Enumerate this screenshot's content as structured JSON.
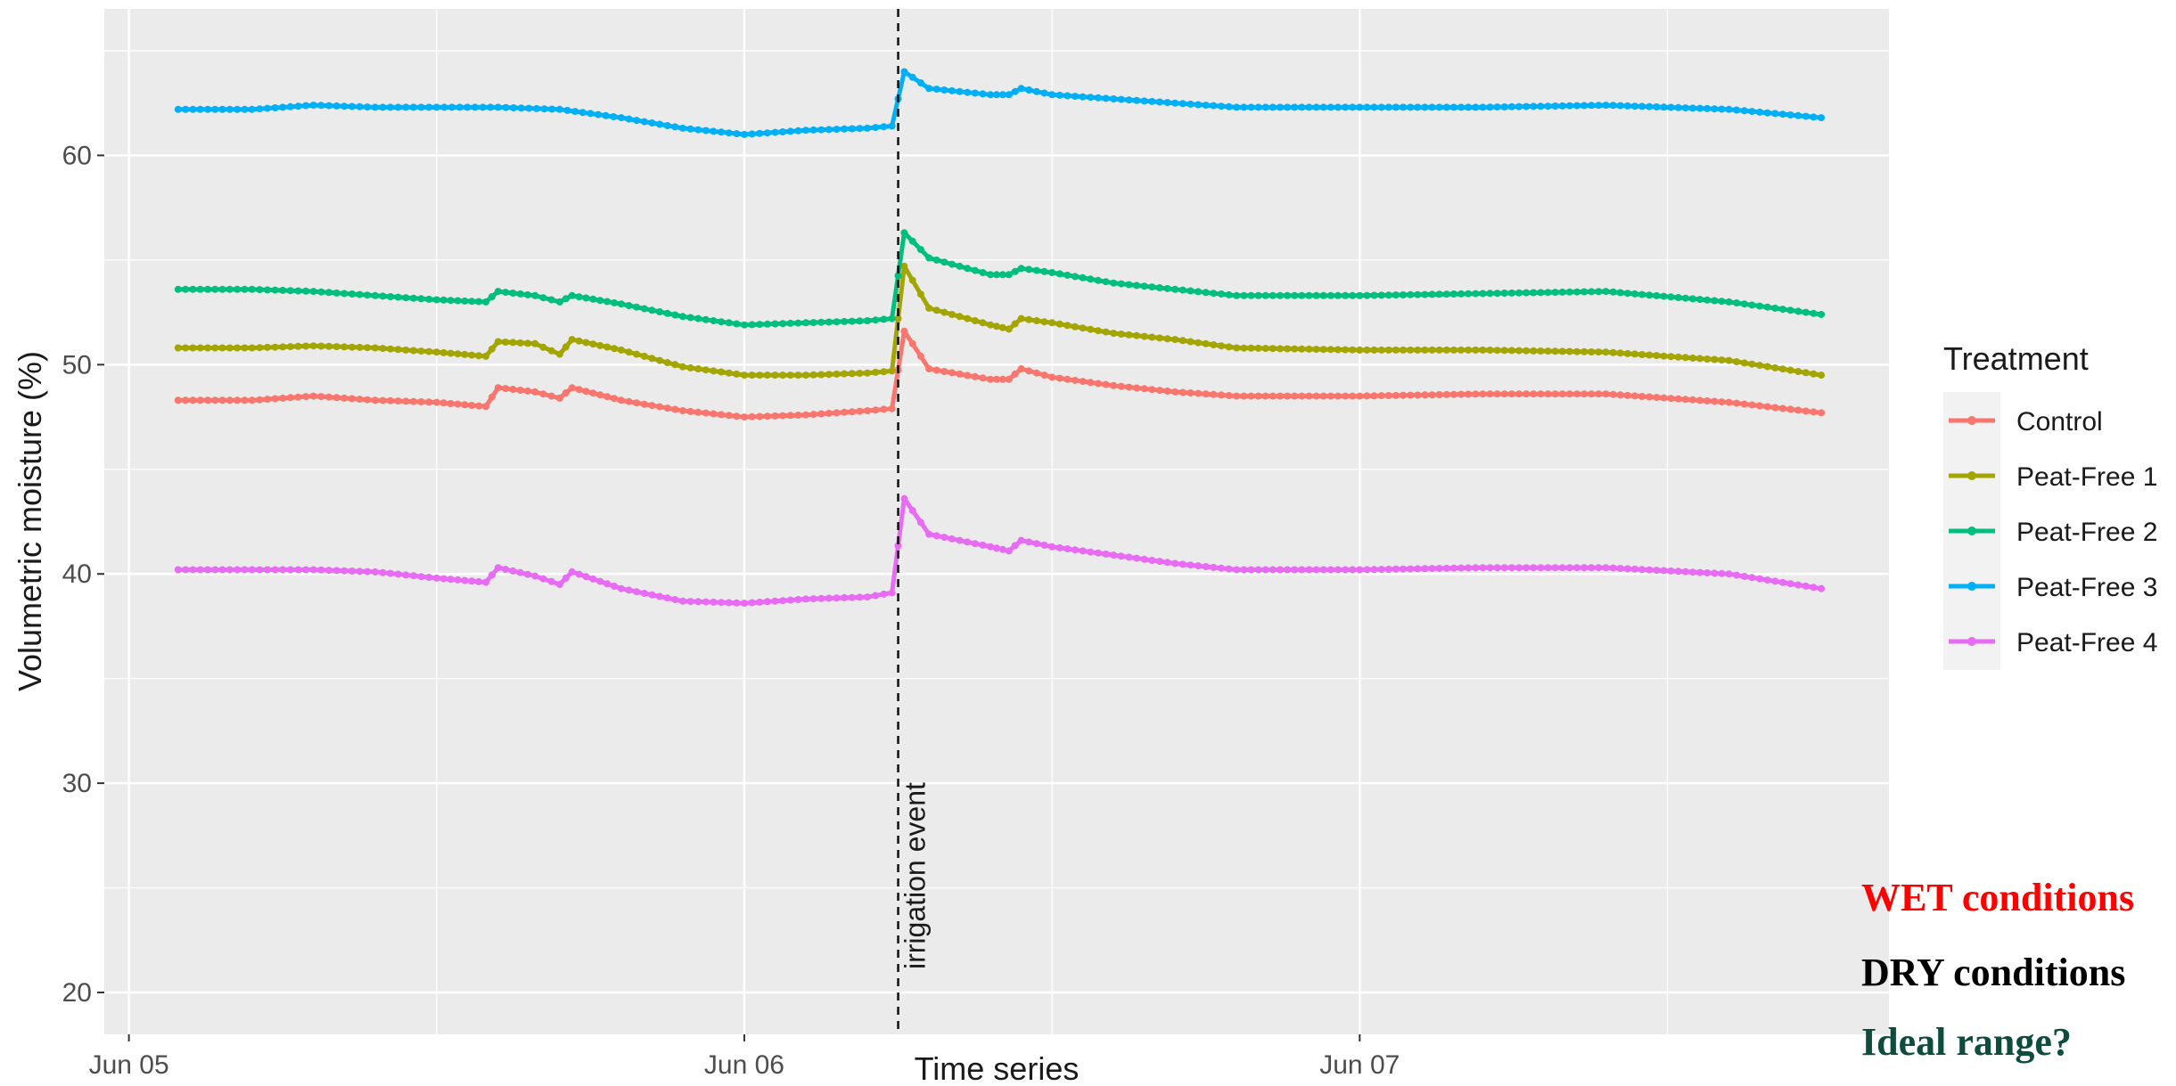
{
  "chart_data": {
    "type": "line",
    "xlabel": "Time series",
    "ylabel": "Volumetric moisture (%)",
    "x_tick_labels": [
      "Jun 05",
      "Jun 06",
      "Jun 07"
    ],
    "y_ticks": [
      20,
      30,
      40,
      50,
      60
    ],
    "ylim": [
      18,
      67
    ],
    "xlim_days": [
      -0.04,
      2.86
    ],
    "grid": true,
    "legend": {
      "title": "Treatment",
      "position": "right"
    },
    "annotation": {
      "label": "irrigation event",
      "x_day": 1.25,
      "style": "dashed vertical line"
    },
    "series": [
      {
        "name": "Control",
        "color": "#F8766D",
        "points": [
          [
            0.08,
            48.3
          ],
          [
            0.2,
            48.3
          ],
          [
            0.3,
            48.5
          ],
          [
            0.4,
            48.3
          ],
          [
            0.5,
            48.2
          ],
          [
            0.58,
            48.0
          ],
          [
            0.6,
            48.9
          ],
          [
            0.66,
            48.7
          ],
          [
            0.7,
            48.4
          ],
          [
            0.72,
            48.9
          ],
          [
            0.8,
            48.3
          ],
          [
            0.9,
            47.8
          ],
          [
            1.0,
            47.5
          ],
          [
            1.1,
            47.6
          ],
          [
            1.2,
            47.8
          ],
          [
            1.24,
            47.9
          ],
          [
            1.26,
            51.6
          ],
          [
            1.3,
            49.8
          ],
          [
            1.4,
            49.3
          ],
          [
            1.43,
            49.3
          ],
          [
            1.45,
            49.8
          ],
          [
            1.5,
            49.4
          ],
          [
            1.6,
            49.0
          ],
          [
            1.7,
            48.7
          ],
          [
            1.8,
            48.5
          ],
          [
            2.0,
            48.5
          ],
          [
            2.2,
            48.6
          ],
          [
            2.4,
            48.6
          ],
          [
            2.6,
            48.2
          ],
          [
            2.75,
            47.7
          ]
        ]
      },
      {
        "name": "Peat-Free 1",
        "color": "#A3A500",
        "points": [
          [
            0.08,
            50.8
          ],
          [
            0.2,
            50.8
          ],
          [
            0.3,
            50.9
          ],
          [
            0.4,
            50.8
          ],
          [
            0.5,
            50.6
          ],
          [
            0.58,
            50.4
          ],
          [
            0.6,
            51.1
          ],
          [
            0.66,
            51.0
          ],
          [
            0.7,
            50.5
          ],
          [
            0.72,
            51.2
          ],
          [
            0.8,
            50.7
          ],
          [
            0.9,
            49.9
          ],
          [
            1.0,
            49.5
          ],
          [
            1.1,
            49.5
          ],
          [
            1.2,
            49.6
          ],
          [
            1.24,
            49.7
          ],
          [
            1.26,
            54.7
          ],
          [
            1.3,
            52.7
          ],
          [
            1.4,
            51.9
          ],
          [
            1.43,
            51.7
          ],
          [
            1.45,
            52.2
          ],
          [
            1.5,
            52.0
          ],
          [
            1.6,
            51.5
          ],
          [
            1.7,
            51.2
          ],
          [
            1.8,
            50.8
          ],
          [
            2.0,
            50.7
          ],
          [
            2.2,
            50.7
          ],
          [
            2.4,
            50.6
          ],
          [
            2.6,
            50.2
          ],
          [
            2.75,
            49.5
          ]
        ]
      },
      {
        "name": "Peat-Free 2",
        "color": "#00BF7D",
        "points": [
          [
            0.08,
            53.6
          ],
          [
            0.2,
            53.6
          ],
          [
            0.3,
            53.5
          ],
          [
            0.4,
            53.3
          ],
          [
            0.5,
            53.1
          ],
          [
            0.58,
            53.0
          ],
          [
            0.6,
            53.5
          ],
          [
            0.66,
            53.3
          ],
          [
            0.7,
            53.0
          ],
          [
            0.72,
            53.3
          ],
          [
            0.8,
            52.9
          ],
          [
            0.9,
            52.3
          ],
          [
            1.0,
            51.9
          ],
          [
            1.1,
            52.0
          ],
          [
            1.2,
            52.1
          ],
          [
            1.24,
            52.2
          ],
          [
            1.26,
            56.3
          ],
          [
            1.3,
            55.1
          ],
          [
            1.4,
            54.3
          ],
          [
            1.43,
            54.3
          ],
          [
            1.45,
            54.6
          ],
          [
            1.5,
            54.4
          ],
          [
            1.6,
            53.9
          ],
          [
            1.7,
            53.6
          ],
          [
            1.8,
            53.3
          ],
          [
            2.0,
            53.3
          ],
          [
            2.2,
            53.4
          ],
          [
            2.4,
            53.5
          ],
          [
            2.6,
            53.0
          ],
          [
            2.75,
            52.4
          ]
        ]
      },
      {
        "name": "Peat-Free 3",
        "color": "#00B0F6",
        "points": [
          [
            0.08,
            62.2
          ],
          [
            0.2,
            62.2
          ],
          [
            0.3,
            62.4
          ],
          [
            0.4,
            62.3
          ],
          [
            0.5,
            62.3
          ],
          [
            0.6,
            62.3
          ],
          [
            0.7,
            62.2
          ],
          [
            0.8,
            61.8
          ],
          [
            0.9,
            61.3
          ],
          [
            1.0,
            61.0
          ],
          [
            1.1,
            61.2
          ],
          [
            1.2,
            61.3
          ],
          [
            1.24,
            61.4
          ],
          [
            1.26,
            64.0
          ],
          [
            1.3,
            63.2
          ],
          [
            1.4,
            62.9
          ],
          [
            1.43,
            62.9
          ],
          [
            1.45,
            63.2
          ],
          [
            1.5,
            62.9
          ],
          [
            1.6,
            62.7
          ],
          [
            1.7,
            62.5
          ],
          [
            1.8,
            62.3
          ],
          [
            2.0,
            62.3
          ],
          [
            2.2,
            62.3
          ],
          [
            2.4,
            62.4
          ],
          [
            2.6,
            62.2
          ],
          [
            2.75,
            61.8
          ]
        ]
      },
      {
        "name": "Peat-Free 4",
        "color": "#E76BF3",
        "points": [
          [
            0.08,
            40.2
          ],
          [
            0.2,
            40.2
          ],
          [
            0.3,
            40.2
          ],
          [
            0.4,
            40.1
          ],
          [
            0.5,
            39.8
          ],
          [
            0.58,
            39.6
          ],
          [
            0.6,
            40.3
          ],
          [
            0.66,
            39.9
          ],
          [
            0.7,
            39.5
          ],
          [
            0.72,
            40.1
          ],
          [
            0.8,
            39.3
          ],
          [
            0.9,
            38.7
          ],
          [
            1.0,
            38.6
          ],
          [
            1.1,
            38.8
          ],
          [
            1.2,
            38.9
          ],
          [
            1.24,
            39.1
          ],
          [
            1.26,
            43.6
          ],
          [
            1.3,
            41.9
          ],
          [
            1.4,
            41.3
          ],
          [
            1.43,
            41.1
          ],
          [
            1.45,
            41.6
          ],
          [
            1.5,
            41.3
          ],
          [
            1.6,
            40.9
          ],
          [
            1.7,
            40.5
          ],
          [
            1.8,
            40.2
          ],
          [
            2.0,
            40.2
          ],
          [
            2.2,
            40.3
          ],
          [
            2.4,
            40.3
          ],
          [
            2.6,
            40.0
          ],
          [
            2.75,
            39.3
          ]
        ]
      }
    ]
  },
  "notes": {
    "wet": {
      "text": "WET conditions",
      "color": "#ff0000"
    },
    "dry": {
      "text": "DRY conditions"
    },
    "ideal": {
      "text": "Ideal range?",
      "color": "#0e4c3e"
    }
  }
}
